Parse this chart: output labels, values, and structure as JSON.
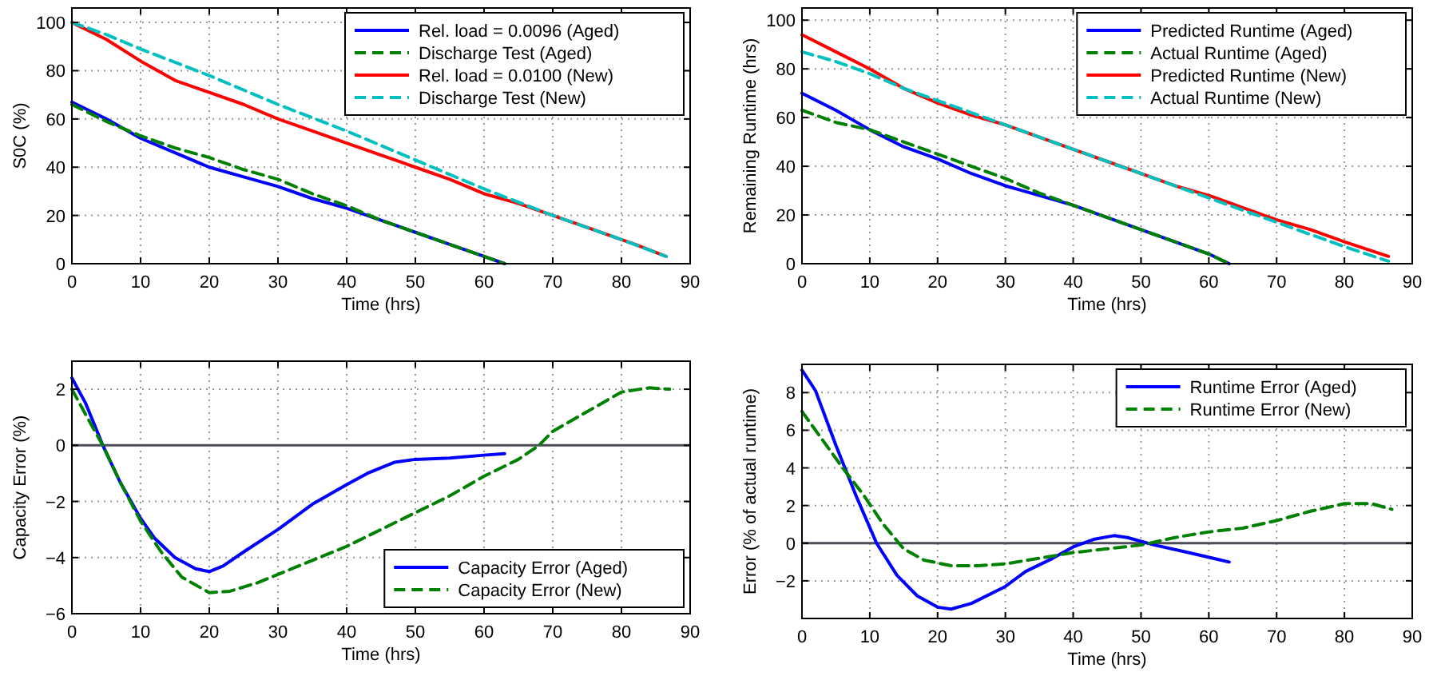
{
  "chart_data": [
    {
      "type": "line",
      "xlabel": "Time (hrs)",
      "ylabel": "S0C (%)",
      "xlim": [
        0,
        90
      ],
      "xticks": [
        0,
        10,
        20,
        30,
        40,
        50,
        60,
        70,
        80,
        90
      ],
      "ylim": [
        0,
        106
      ],
      "yticks": [
        0,
        20,
        40,
        60,
        80,
        100
      ],
      "grid": true,
      "legend": "top right",
      "series": [
        {
          "name": "Rel. load = 0.0096 (Aged)",
          "color": "#0000ff",
          "line_style": "solid",
          "x": [
            0,
            5,
            10,
            15,
            20,
            25,
            30,
            35,
            40,
            45,
            50,
            55,
            60,
            63
          ],
          "values": [
            67,
            60,
            52,
            46,
            40,
            36,
            32,
            27,
            23,
            18,
            13,
            8,
            3,
            0
          ]
        },
        {
          "name": "Discharge Test (Aged)",
          "color": "#008000",
          "line_style": "dashed",
          "x": [
            0,
            5,
            10,
            15,
            20,
            25,
            30,
            35,
            40,
            45,
            50,
            55,
            60,
            63
          ],
          "values": [
            66,
            59,
            53,
            48,
            44,
            39,
            35,
            29,
            24,
            18,
            13,
            8,
            3,
            0
          ]
        },
        {
          "name": "Rel. load = 0.0100 (New)",
          "color": "#ff0000",
          "line_style": "solid",
          "x": [
            0,
            5,
            10,
            15,
            20,
            25,
            30,
            35,
            40,
            45,
            50,
            55,
            60,
            65,
            70,
            75,
            80,
            82,
            86.5
          ],
          "values": [
            100,
            93,
            84,
            76,
            71,
            66,
            60,
            55,
            50,
            45,
            40,
            35,
            29,
            25,
            20,
            15,
            10,
            8,
            3
          ]
        },
        {
          "name": "Discharge Test (New)",
          "color": "#00bfbf",
          "line_style": "dashed",
          "x": [
            0,
            5,
            10,
            20,
            30,
            40,
            50,
            60,
            70,
            80,
            86.5
          ],
          "values": [
            100,
            95,
            89,
            78,
            66,
            55,
            43,
            31,
            20,
            10,
            3
          ]
        }
      ]
    },
    {
      "type": "line",
      "xlabel": "Time (hrs)",
      "ylabel": "Remaining Runtime (hrs)",
      "xlim": [
        0,
        90
      ],
      "xticks": [
        0,
        10,
        20,
        30,
        40,
        50,
        60,
        70,
        80,
        90
      ],
      "ylim": [
        0,
        105
      ],
      "yticks": [
        0,
        20,
        40,
        60,
        80,
        100
      ],
      "grid": true,
      "legend": "top right",
      "series": [
        {
          "name": "Predicted Runtime (Aged)",
          "color": "#0000ff",
          "line_style": "solid",
          "x": [
            0,
            5,
            10,
            15,
            20,
            25,
            30,
            35,
            40,
            45,
            50,
            55,
            60,
            63
          ],
          "values": [
            70,
            63,
            55,
            48,
            43,
            37,
            32,
            28,
            24,
            19,
            14,
            9,
            4,
            0
          ]
        },
        {
          "name": "Actual Runtime (Aged)",
          "color": "#008000",
          "line_style": "dashed",
          "x": [
            0,
            5,
            10,
            15,
            20,
            25,
            30,
            35,
            40,
            45,
            50,
            55,
            60,
            63
          ],
          "values": [
            63,
            58,
            55,
            50,
            45,
            40,
            35,
            29,
            24,
            19,
            14,
            9,
            4,
            0
          ]
        },
        {
          "name": "Predicted Runtime (New)",
          "color": "#ff0000",
          "line_style": "solid",
          "x": [
            0,
            5,
            10,
            15,
            20,
            25,
            30,
            35,
            40,
            45,
            50,
            55,
            60,
            65,
            70,
            75,
            80,
            86.5
          ],
          "values": [
            94,
            87,
            80,
            72,
            66,
            61,
            57,
            52,
            47,
            42,
            37,
            32,
            28,
            23,
            18,
            14,
            9,
            3
          ]
        },
        {
          "name": "Actual Runtime (New)",
          "color": "#00bfbf",
          "line_style": "dashed",
          "x": [
            0,
            5,
            10,
            15,
            20,
            25,
            30,
            35,
            40,
            45,
            50,
            55,
            60,
            65,
            70,
            75,
            80,
            86.5
          ],
          "values": [
            87,
            83,
            78,
            72,
            67,
            62,
            57,
            52,
            47,
            42,
            37,
            32,
            27,
            22,
            17,
            12,
            7,
            1
          ]
        }
      ]
    },
    {
      "type": "line",
      "xlabel": "Time (hrs)",
      "ylabel": "Capacity Error (%)",
      "xlim": [
        0,
        90
      ],
      "xticks": [
        0,
        10,
        20,
        30,
        40,
        50,
        60,
        70,
        80,
        90
      ],
      "ylim": [
        -6,
        3
      ],
      "yticks": [
        -6,
        -4,
        -2,
        0,
        2
      ],
      "grid": true,
      "legend": "bottom right",
      "ref_lines": [
        {
          "axis": "y",
          "value": 0,
          "color": "#4d4d5a"
        }
      ],
      "series": [
        {
          "name": "Capacity Error (Aged)",
          "color": "#0000ff",
          "line_style": "solid",
          "x": [
            0,
            2,
            4.5,
            7,
            10,
            12,
            15,
            18,
            20,
            22,
            25,
            30,
            35,
            40,
            43,
            47,
            50,
            55,
            60,
            63
          ],
          "values": [
            2.4,
            1.5,
            0,
            -1.3,
            -2.6,
            -3.3,
            -4,
            -4.4,
            -4.5,
            -4.3,
            -3.8,
            -3,
            -2.1,
            -1.4,
            -1,
            -0.6,
            -0.5,
            -0.45,
            -0.35,
            -0.3
          ]
        },
        {
          "name": "Capacity Error (New)",
          "color": "#008000",
          "line_style": "dashed",
          "x": [
            0,
            2,
            4.5,
            7,
            10,
            13,
            16,
            20,
            23,
            27,
            30,
            35,
            40,
            45,
            50,
            55,
            60,
            65,
            68,
            70,
            75,
            80,
            84,
            87
          ],
          "values": [
            2,
            1.1,
            0,
            -1.3,
            -2.7,
            -3.8,
            -4.7,
            -5.25,
            -5.2,
            -4.9,
            -4.6,
            -4.1,
            -3.6,
            -3,
            -2.4,
            -1.8,
            -1.1,
            -0.5,
            0,
            0.5,
            1.2,
            1.9,
            2.05,
            2
          ]
        }
      ]
    },
    {
      "type": "line",
      "xlabel": "Time (hrs)",
      "ylabel": "Error (% of actual runtime)",
      "xlim": [
        0,
        90
      ],
      "xticks": [
        0,
        10,
        20,
        30,
        40,
        50,
        60,
        70,
        80,
        90
      ],
      "ylim": [
        -4,
        9.5
      ],
      "yticks": [
        -2,
        0,
        2,
        4,
        6,
        8
      ],
      "grid": true,
      "legend": "top right",
      "ref_lines": [
        {
          "axis": "y",
          "value": 0,
          "color": "#4d4d5a"
        }
      ],
      "series": [
        {
          "name": "Runtime Error (Aged)",
          "color": "#0000ff",
          "line_style": "solid",
          "x": [
            0,
            2,
            5,
            8,
            11,
            14,
            17,
            20,
            22,
            25,
            30,
            33,
            37,
            40,
            43,
            46,
            48,
            52,
            57,
            63
          ],
          "values": [
            9.2,
            8.1,
            5.2,
            2.5,
            0,
            -1.7,
            -2.8,
            -3.4,
            -3.5,
            -3.2,
            -2.3,
            -1.5,
            -0.8,
            -0.2,
            0.2,
            0.4,
            0.3,
            -0.1,
            -0.5,
            -1
          ]
        },
        {
          "name": "Runtime Error (New)",
          "color": "#008000",
          "line_style": "dashed",
          "x": [
            0,
            3,
            6,
            9,
            12,
            15,
            18,
            22,
            26,
            30,
            35,
            40,
            45,
            50,
            55,
            60,
            65,
            70,
            75,
            80,
            84,
            87
          ],
          "values": [
            7,
            5.5,
            4,
            2.6,
            1,
            -0.3,
            -0.9,
            -1.2,
            -1.2,
            -1.1,
            -0.8,
            -0.5,
            -0.3,
            -0.1,
            0.3,
            0.6,
            0.8,
            1.2,
            1.7,
            2.1,
            2.1,
            1.8
          ]
        }
      ]
    }
  ]
}
